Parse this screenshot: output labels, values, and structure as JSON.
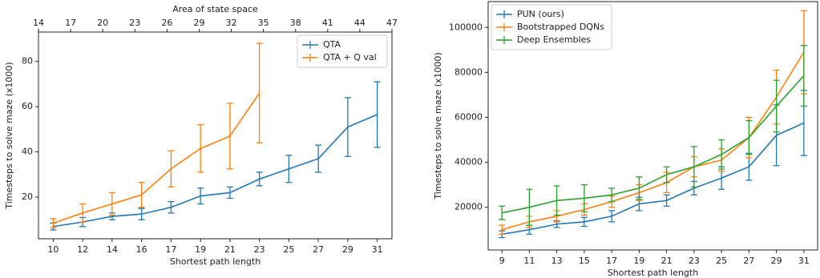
{
  "chart_data": [
    {
      "type": "line",
      "xlabel": "Shortest path length",
      "ylabel": "Timesteps to solve maze (x1000)",
      "x2label": "Area of state space",
      "categories": [
        "10",
        "12",
        "14",
        "16",
        "17",
        "19",
        "21",
        "23",
        "25",
        "27",
        "29",
        "31"
      ],
      "x2lim": [
        14,
        47
      ],
      "x2ticks": [
        14,
        17,
        20,
        23,
        26,
        29,
        32,
        35,
        38,
        41,
        44,
        47
      ],
      "ylim": [
        1.6,
        93
      ],
      "yticks": [
        20,
        40,
        60,
        80
      ],
      "legend": "upper right",
      "series": [
        {
          "name": "QTA",
          "color": "#1f77b4",
          "values": [
            7,
            9,
            11.5,
            12.5,
            15.5,
            20.5,
            22,
            28,
            32.5,
            37,
            51,
            56.5
          ],
          "errors": [
            1.5,
            2,
            1.5,
            2.5,
            2.5,
            3.5,
            2.5,
            3,
            6,
            6,
            13,
            14.5
          ]
        },
        {
          "name": "QTA + Q val",
          "color": "#ff7f0e",
          "values": [
            8.5,
            13,
            17,
            21,
            32.5,
            41.5,
            47,
            66,
            null,
            null,
            null,
            null
          ],
          "errors": [
            2,
            4,
            5,
            5.5,
            8,
            10.5,
            14.5,
            22,
            null,
            null,
            null,
            null
          ]
        }
      ]
    },
    {
      "type": "line",
      "xlabel": "Shortest path length",
      "ylabel": "Timesteps to solve maze (x1000)",
      "categories": [
        "9",
        "11",
        "13",
        "15",
        "17",
        "19",
        "21",
        "23",
        "25",
        "27",
        "29",
        "31"
      ],
      "ylim": [
        1000,
        111500
      ],
      "yticks": [
        20000,
        40000,
        60000,
        80000,
        100000
      ],
      "legend": "upper left",
      "series": [
        {
          "name": "PUN (ours)",
          "color": "#1f77b4",
          "values": [
            8000,
            10000,
            12500,
            13500,
            16000,
            21500,
            23000,
            28500,
            33000,
            38000,
            52000,
            57500
          ],
          "errors": [
            1500,
            2000,
            1500,
            2000,
            2500,
            3000,
            2500,
            3000,
            5000,
            6000,
            13500,
            14500
          ]
        },
        {
          "name": "Bootstrapped DQNs",
          "color": "#ff7f0e",
          "values": [
            10000,
            13500,
            16000,
            19000,
            22500,
            26500,
            31000,
            38000,
            41000,
            51000,
            69000,
            89000
          ],
          "errors": [
            2000,
            2500,
            2500,
            2500,
            2500,
            3500,
            4500,
            4500,
            5000,
            9000,
            12000,
            18500
          ]
        },
        {
          "name": "Deep Ensembles",
          "color": "#2ca02c",
          "values": [
            17500,
            20000,
            23000,
            24000,
            25500,
            28500,
            34500,
            38000,
            43500,
            51000,
            65000,
            78500
          ],
          "errors": [
            3000,
            8000,
            6500,
            6000,
            3000,
            5000,
            3500,
            9000,
            6500,
            7500,
            11500,
            13500
          ]
        }
      ]
    }
  ]
}
